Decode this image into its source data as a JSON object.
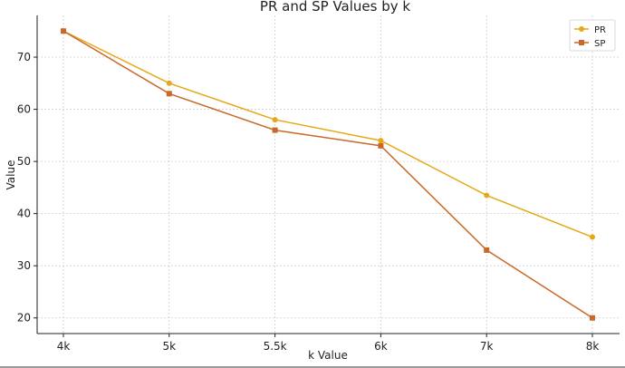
{
  "chart_data": {
    "type": "line",
    "title": "PR and SP Values by k",
    "xlabel": "k Value",
    "ylabel": "Value",
    "categories": [
      "4k",
      "5k",
      "5.5k",
      "6k",
      "7k",
      "8k"
    ],
    "ylim": [
      17,
      78
    ],
    "yticks": [
      20,
      30,
      40,
      50,
      60,
      70
    ],
    "grid": true,
    "legend_position": "top-right",
    "series": [
      {
        "name": "PR",
        "values": [
          75,
          65,
          58,
          54,
          43.5,
          35.5
        ],
        "color": "#e5a818",
        "marker": "circle"
      },
      {
        "name": "SP",
        "values": [
          75,
          63,
          56,
          53,
          33,
          20
        ],
        "color": "#c8692a",
        "marker": "square"
      }
    ]
  }
}
